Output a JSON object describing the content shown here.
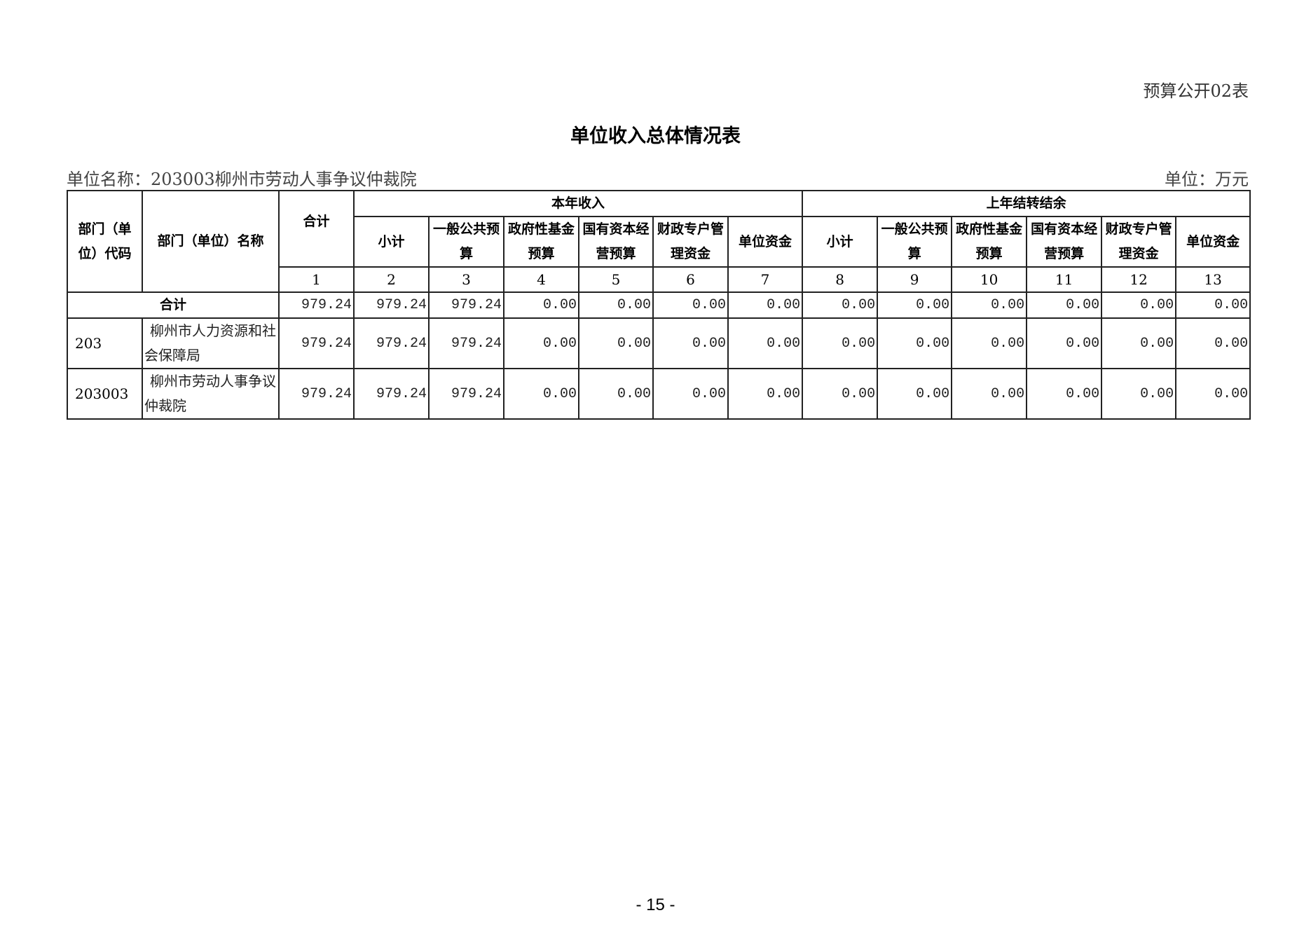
{
  "form_no": "预算公开02表",
  "title": "单位收入总体情况表",
  "unit_name": "单位名称：203003柳州市劳动人事争议仲裁院",
  "unit": "单位：万元",
  "headers": {
    "code": "部门（单位）代码",
    "name": "部门（单位）名称",
    "total": "合计",
    "group_current": "本年收入",
    "group_prior": "上年结转结余",
    "sub": [
      "小计",
      "一般公共预算",
      "政府性基金预算",
      "国有资本经营预算",
      "财政专户管理资金",
      "单位资金",
      "小计",
      "一般公共预算",
      "政府性基金预算",
      "国有资本经营预算",
      "财政专户管理资金",
      "单位资金"
    ],
    "indices": [
      "1",
      "2",
      "3",
      "4",
      "5",
      "6",
      "7",
      "8",
      "9",
      "10",
      "11",
      "12",
      "13"
    ]
  },
  "total_row": {
    "label": "合计",
    "values": [
      "979.24",
      "979.24",
      "979.24",
      "0.00",
      "0.00",
      "0.00",
      "0.00",
      "0.00",
      "0.00",
      "0.00",
      "0.00",
      "0.00",
      "0.00"
    ]
  },
  "rows": [
    {
      "code": "203",
      "name": "柳州市人力资源和社会保障局",
      "values": [
        "979.24",
        "979.24",
        "979.24",
        "0.00",
        "0.00",
        "0.00",
        "0.00",
        "0.00",
        "0.00",
        "0.00",
        "0.00",
        "0.00",
        "0.00"
      ]
    },
    {
      "code": "203003",
      "name": "柳州市劳动人事争议仲裁院",
      "values": [
        "979.24",
        "979.24",
        "979.24",
        "0.00",
        "0.00",
        "0.00",
        "0.00",
        "0.00",
        "0.00",
        "0.00",
        "0.00",
        "0.00",
        "0.00"
      ]
    }
  ],
  "page_number": "- 15 -"
}
